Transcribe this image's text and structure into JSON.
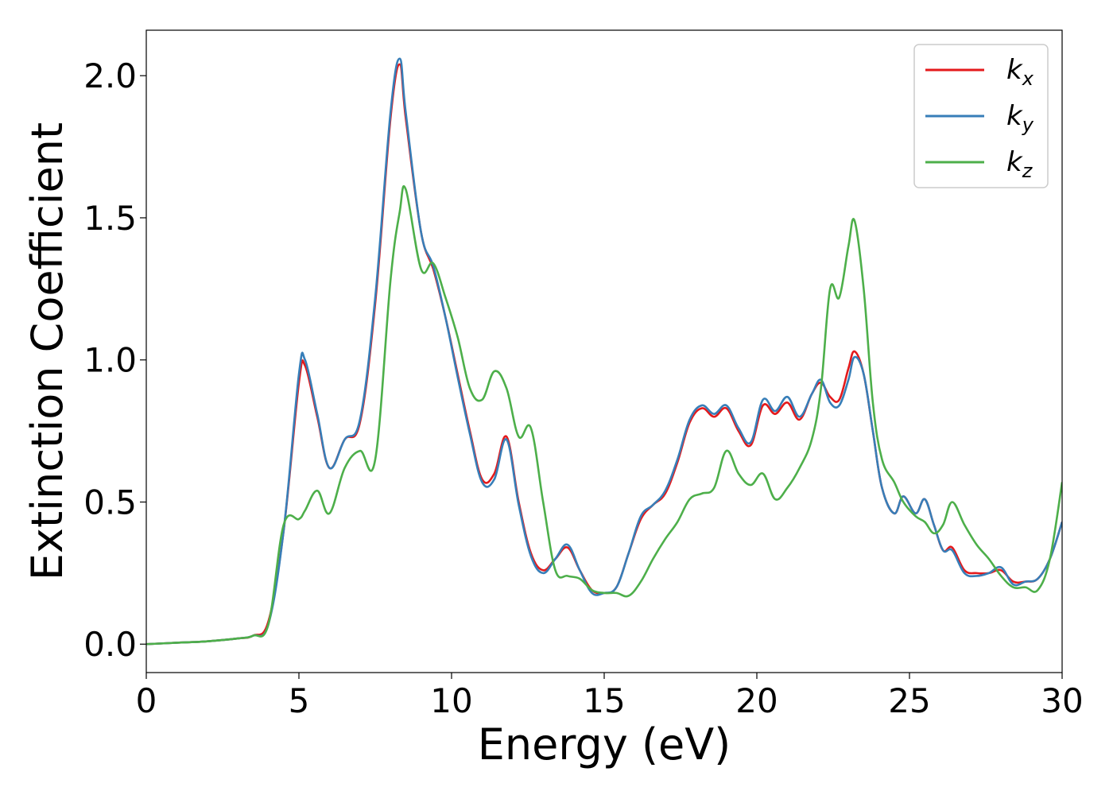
{
  "chart_data": {
    "type": "line",
    "xlabel": "Energy (eV)",
    "ylabel": "Extinction Coefficient",
    "xlim": [
      0,
      30
    ],
    "ylim": [
      -0.1,
      2.16
    ],
    "xticks": [
      "0",
      "5",
      "10",
      "15",
      "20",
      "25",
      "30"
    ],
    "yticks": [
      "0.0",
      "0.5",
      "1.0",
      "1.5",
      "2.0"
    ],
    "grid": false,
    "legend_position": "top-right",
    "x": [
      0,
      1,
      2,
      3,
      3.5,
      4,
      4.5,
      5,
      5.2,
      5.6,
      6,
      6.5,
      7,
      7.5,
      8,
      8.3,
      8.5,
      9,
      9.4,
      9.8,
      10.2,
      10.6,
      11,
      11.4,
      11.8,
      12.2,
      12.6,
      13,
      13.4,
      13.8,
      14.2,
      14.6,
      15,
      15.4,
      15.8,
      16.2,
      16.6,
      17,
      17.4,
      17.8,
      18.2,
      18.6,
      19,
      19.4,
      19.8,
      20.2,
      20.6,
      21,
      21.4,
      21.8,
      22.1,
      22.4,
      22.7,
      23,
      23.2,
      23.5,
      23.8,
      24.1,
      24.5,
      24.8,
      25.2,
      25.5,
      25.8,
      26.1,
      26.4,
      26.8,
      27.2,
      27.6,
      28,
      28.4,
      28.8,
      29.2,
      29.6,
      30
    ],
    "series": [
      {
        "name": "k",
        "subscript": "x",
        "color": "#e41a1c",
        "values": [
          0.0,
          0.005,
          0.01,
          0.02,
          0.03,
          0.08,
          0.4,
          0.92,
          0.98,
          0.8,
          0.62,
          0.72,
          0.78,
          1.2,
          1.85,
          2.04,
          1.85,
          1.45,
          1.32,
          1.15,
          0.95,
          0.75,
          0.58,
          0.6,
          0.73,
          0.5,
          0.32,
          0.26,
          0.3,
          0.34,
          0.26,
          0.19,
          0.18,
          0.2,
          0.32,
          0.44,
          0.49,
          0.53,
          0.64,
          0.78,
          0.83,
          0.8,
          0.83,
          0.75,
          0.7,
          0.84,
          0.81,
          0.85,
          0.79,
          0.88,
          0.92,
          0.87,
          0.86,
          0.97,
          1.03,
          0.95,
          0.75,
          0.55,
          0.46,
          0.52,
          0.46,
          0.51,
          0.42,
          0.33,
          0.34,
          0.26,
          0.25,
          0.25,
          0.26,
          0.22,
          0.22,
          0.23,
          0.3,
          0.43
        ]
      },
      {
        "name": "k",
        "subscript": "y",
        "color": "#377eb8",
        "values": [
          0.0,
          0.005,
          0.01,
          0.02,
          0.03,
          0.07,
          0.4,
          0.95,
          1.0,
          0.81,
          0.62,
          0.72,
          0.79,
          1.22,
          1.87,
          2.06,
          1.87,
          1.45,
          1.33,
          1.15,
          0.94,
          0.74,
          0.57,
          0.58,
          0.72,
          0.49,
          0.31,
          0.25,
          0.3,
          0.35,
          0.26,
          0.18,
          0.18,
          0.2,
          0.32,
          0.45,
          0.49,
          0.54,
          0.65,
          0.79,
          0.84,
          0.81,
          0.84,
          0.76,
          0.71,
          0.86,
          0.82,
          0.87,
          0.8,
          0.88,
          0.93,
          0.85,
          0.84,
          0.93,
          1.01,
          0.95,
          0.75,
          0.55,
          0.46,
          0.52,
          0.46,
          0.51,
          0.42,
          0.33,
          0.33,
          0.25,
          0.24,
          0.25,
          0.27,
          0.21,
          0.22,
          0.23,
          0.3,
          0.43
        ]
      },
      {
        "name": "k",
        "subscript": "z",
        "color": "#4daf4a",
        "values": [
          0.0,
          0.005,
          0.01,
          0.02,
          0.03,
          0.07,
          0.42,
          0.44,
          0.47,
          0.54,
          0.46,
          0.62,
          0.68,
          0.65,
          1.28,
          1.52,
          1.6,
          1.32,
          1.34,
          1.22,
          1.08,
          0.9,
          0.86,
          0.96,
          0.9,
          0.73,
          0.76,
          0.5,
          0.26,
          0.24,
          0.23,
          0.19,
          0.18,
          0.18,
          0.17,
          0.22,
          0.3,
          0.37,
          0.43,
          0.51,
          0.53,
          0.55,
          0.68,
          0.6,
          0.56,
          0.6,
          0.51,
          0.55,
          0.62,
          0.72,
          0.9,
          1.25,
          1.22,
          1.4,
          1.49,
          1.25,
          0.85,
          0.65,
          0.57,
          0.5,
          0.45,
          0.43,
          0.39,
          0.42,
          0.5,
          0.42,
          0.35,
          0.3,
          0.24,
          0.2,
          0.2,
          0.19,
          0.3,
          0.57
        ]
      }
    ]
  }
}
